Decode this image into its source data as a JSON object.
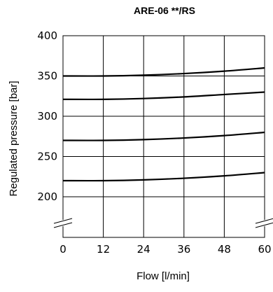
{
  "chart_data": {
    "type": "line",
    "title": "ARE-06 **/RS",
    "xlabel": "Flow [l/min]",
    "ylabel": "Regulated pressure [bar]",
    "xlim": [
      0,
      60
    ],
    "ylim": [
      200,
      400
    ],
    "x_ticks": [
      "0",
      "12",
      "24",
      "36",
      "48",
      "60"
    ],
    "y_ticks": [
      "200",
      "250",
      "300",
      "350",
      "400"
    ],
    "grid": true,
    "axis_break": "y-below-200",
    "series": [
      {
        "x": [
          0,
          12,
          24,
          36,
          48,
          60
        ],
        "values": [
          220,
          220,
          221,
          223,
          226,
          230
        ]
      },
      {
        "x": [
          0,
          12,
          24,
          36,
          48,
          60
        ],
        "values": [
          270,
          270,
          271,
          273,
          276,
          280
        ]
      },
      {
        "x": [
          0,
          12,
          24,
          36,
          48,
          60
        ],
        "values": [
          321,
          321,
          322,
          324,
          327,
          330
        ]
      },
      {
        "x": [
          0,
          12,
          24,
          36,
          48,
          60
        ],
        "values": [
          350,
          350,
          351,
          353,
          356,
          360
        ]
      }
    ]
  }
}
